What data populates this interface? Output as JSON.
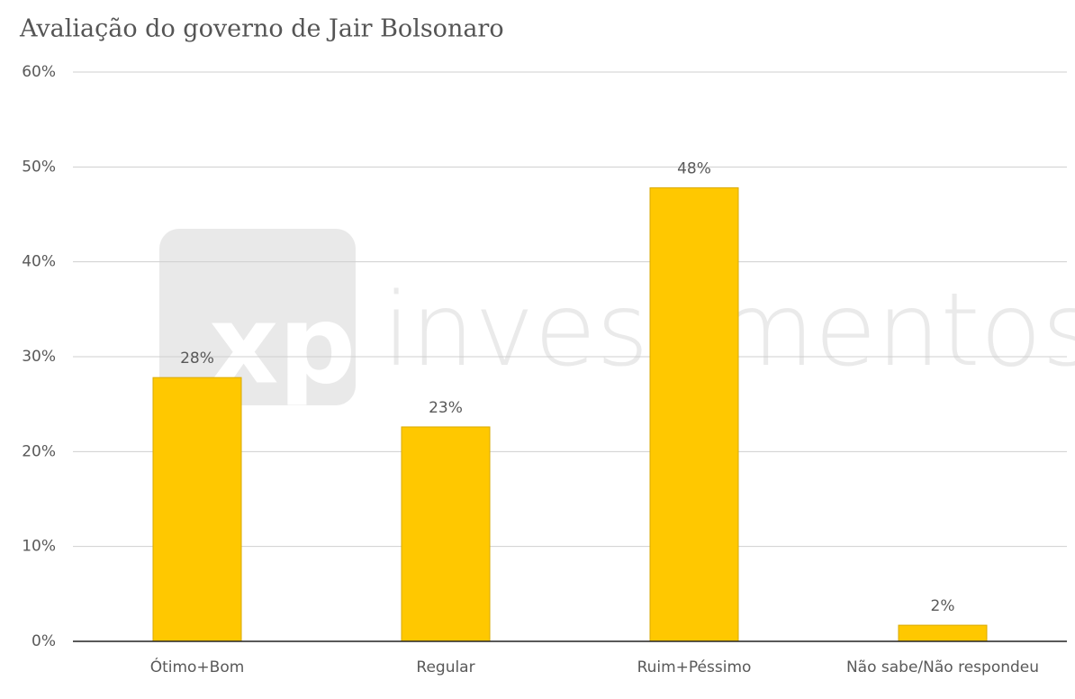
{
  "chart_data": {
    "type": "bar",
    "title": "Avaliação do governo de Jair Bolsonaro",
    "categories": [
      "Ótimo+Bom",
      "Regular",
      "Ruim+Péssimo",
      "Não sabe/Não respondeu"
    ],
    "values": [
      27.8,
      22.6,
      47.8,
      1.7
    ],
    "value_labels": [
      "28%",
      "23%",
      "48%",
      "2%"
    ],
    "color": "#ffc800",
    "ylim": [
      0,
      60
    ],
    "yticks": [
      {
        "value": 0,
        "label": "0%"
      },
      {
        "value": 10,
        "label": "10%"
      },
      {
        "value": 20,
        "label": "20%"
      },
      {
        "value": 30,
        "label": "30%"
      },
      {
        "value": 40,
        "label": "40%"
      },
      {
        "value": 50,
        "label": "50%"
      },
      {
        "value": 60,
        "label": "60%"
      }
    ],
    "grid": true,
    "watermark": {
      "logo": "xp",
      "text": "investimentos"
    }
  }
}
